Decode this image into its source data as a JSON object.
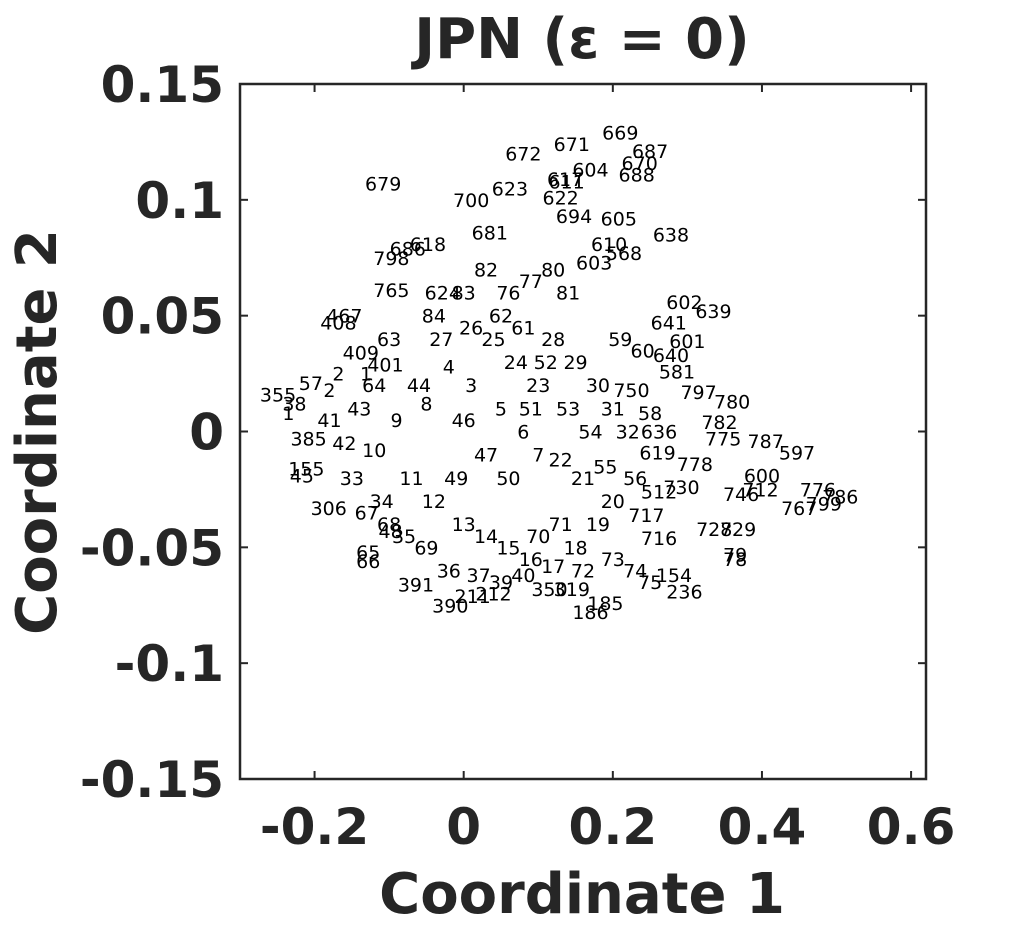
{
  "chart_data": {
    "type": "scatter",
    "title": "JPN (ε = 0)",
    "xlabel": "Coordinate 1",
    "ylabel": "Coordinate 2",
    "xlim": [
      -0.3,
      0.62
    ],
    "ylim": [
      -0.15,
      0.15
    ],
    "x_ticks": [
      -0.2,
      0,
      0.2,
      0.4,
      0.6
    ],
    "x_tick_labels": [
      "-0.2",
      "0",
      "0.2",
      "0.4",
      "0.6"
    ],
    "y_ticks": [
      -0.15,
      -0.1,
      -0.05,
      0,
      0.05,
      0.1,
      0.15
    ],
    "y_tick_labels": [
      "-0.15",
      "-0.1",
      "-0.05",
      "0",
      "0.05",
      "0.1",
      "0.15"
    ],
    "grid": false,
    "marker": "text-label",
    "color": "#000000",
    "points": [
      {
        "label": "669",
        "x": 0.21,
        "y": 0.129
      },
      {
        "label": "672",
        "x": 0.08,
        "y": 0.12
      },
      {
        "label": "671",
        "x": 0.145,
        "y": 0.124
      },
      {
        "label": "687",
        "x": 0.25,
        "y": 0.121
      },
      {
        "label": "604",
        "x": 0.17,
        "y": 0.113
      },
      {
        "label": "670",
        "x": 0.236,
        "y": 0.116
      },
      {
        "label": "688",
        "x": 0.232,
        "y": 0.111
      },
      {
        "label": "617",
        "x": 0.136,
        "y": 0.109
      },
      {
        "label": "611",
        "x": 0.138,
        "y": 0.108
      },
      {
        "label": "679",
        "x": -0.108,
        "y": 0.107
      },
      {
        "label": "623",
        "x": 0.062,
        "y": 0.105
      },
      {
        "label": "700",
        "x": 0.01,
        "y": 0.1
      },
      {
        "label": "622",
        "x": 0.13,
        "y": 0.101
      },
      {
        "label": "605",
        "x": 0.208,
        "y": 0.092
      },
      {
        "label": "694",
        "x": 0.148,
        "y": 0.093
      },
      {
        "label": "638",
        "x": 0.278,
        "y": 0.085
      },
      {
        "label": "681",
        "x": 0.035,
        "y": 0.086
      },
      {
        "label": "610",
        "x": 0.195,
        "y": 0.081
      },
      {
        "label": "618",
        "x": -0.048,
        "y": 0.081
      },
      {
        "label": "686",
        "x": -0.075,
        "y": 0.079
      },
      {
        "label": "568",
        "x": 0.215,
        "y": 0.077
      },
      {
        "label": "798",
        "x": -0.097,
        "y": 0.075
      },
      {
        "label": "603",
        "x": 0.175,
        "y": 0.073
      },
      {
        "label": "765",
        "x": -0.097,
        "y": 0.061
      },
      {
        "label": "624",
        "x": -0.028,
        "y": 0.06
      },
      {
        "label": "602",
        "x": 0.296,
        "y": 0.056
      },
      {
        "label": "639",
        "x": 0.335,
        "y": 0.052
      },
      {
        "label": "467",
        "x": -0.16,
        "y": 0.05
      },
      {
        "label": "408",
        "x": -0.168,
        "y": 0.047
      },
      {
        "label": "641",
        "x": 0.275,
        "y": 0.047
      },
      {
        "label": "601",
        "x": 0.3,
        "y": 0.039
      },
      {
        "label": "409",
        "x": -0.138,
        "y": 0.034
      },
      {
        "label": "640",
        "x": 0.278,
        "y": 0.033
      },
      {
        "label": "581",
        "x": 0.286,
        "y": 0.026
      },
      {
        "label": "797",
        "x": 0.315,
        "y": 0.017
      },
      {
        "label": "780",
        "x": 0.36,
        "y": 0.013
      },
      {
        "label": "750",
        "x": 0.225,
        "y": 0.018
      },
      {
        "label": "782",
        "x": 0.343,
        "y": 0.004
      },
      {
        "label": "775",
        "x": 0.348,
        "y": -0.003
      },
      {
        "label": "787",
        "x": 0.405,
        "y": -0.004
      },
      {
        "label": "597",
        "x": 0.447,
        "y": -0.009
      },
      {
        "label": "636",
        "x": 0.262,
        "y": 0.0
      },
      {
        "label": "619",
        "x": 0.26,
        "y": -0.009
      },
      {
        "label": "778",
        "x": 0.31,
        "y": -0.014
      },
      {
        "label": "600",
        "x": 0.4,
        "y": -0.019
      },
      {
        "label": "776",
        "x": 0.475,
        "y": -0.025
      },
      {
        "label": "786",
        "x": 0.505,
        "y": -0.028
      },
      {
        "label": "799",
        "x": 0.483,
        "y": -0.031
      },
      {
        "label": "767",
        "x": 0.45,
        "y": -0.033
      },
      {
        "label": "712",
        "x": 0.398,
        "y": -0.025
      },
      {
        "label": "746",
        "x": 0.372,
        "y": -0.027
      },
      {
        "label": "730",
        "x": 0.292,
        "y": -0.024
      },
      {
        "label": "512",
        "x": 0.262,
        "y": -0.026
      },
      {
        "label": "717",
        "x": 0.245,
        "y": -0.036
      },
      {
        "label": "728",
        "x": 0.336,
        "y": -0.042
      },
      {
        "label": "729",
        "x": 0.368,
        "y": -0.042
      },
      {
        "label": "716",
        "x": 0.262,
        "y": -0.046
      },
      {
        "label": "79",
        "x": 0.364,
        "y": -0.053
      },
      {
        "label": "78",
        "x": 0.364,
        "y": -0.055
      },
      {
        "label": "154",
        "x": 0.282,
        "y": -0.062
      },
      {
        "label": "236",
        "x": 0.296,
        "y": -0.069
      },
      {
        "label": "185",
        "x": 0.19,
        "y": -0.074
      },
      {
        "label": "186",
        "x": 0.17,
        "y": -0.078
      },
      {
        "label": "390",
        "x": -0.018,
        "y": -0.075
      },
      {
        "label": "391",
        "x": -0.064,
        "y": -0.066
      },
      {
        "label": "211",
        "x": 0.012,
        "y": -0.071
      },
      {
        "label": "212",
        "x": 0.04,
        "y": -0.07
      },
      {
        "label": "350",
        "x": 0.115,
        "y": -0.068
      },
      {
        "label": "319",
        "x": 0.145,
        "y": -0.068
      },
      {
        "label": "65",
        "x": -0.128,
        "y": -0.052
      },
      {
        "label": "66",
        "x": -0.128,
        "y": -0.056
      },
      {
        "label": "48",
        "x": -0.098,
        "y": -0.043
      },
      {
        "label": "306",
        "x": -0.181,
        "y": -0.033
      },
      {
        "label": "45",
        "x": -0.217,
        "y": -0.019
      },
      {
        "label": "155",
        "x": -0.211,
        "y": -0.016
      },
      {
        "label": "355",
        "x": -0.249,
        "y": 0.016
      },
      {
        "label": "385",
        "x": -0.208,
        "y": -0.003
      },
      {
        "label": "401",
        "x": -0.105,
        "y": 0.029
      },
      {
        "label": "1",
        "x": -0.131,
        "y": 0.025
      },
      {
        "label": "2",
        "x": -0.168,
        "y": 0.025
      },
      {
        "label": "38",
        "x": -0.227,
        "y": 0.012
      },
      {
        "label": "1",
        "x": -0.235,
        "y": 0.008
      },
      {
        "label": "2",
        "x": -0.18,
        "y": 0.018
      },
      {
        "label": "57",
        "x": -0.205,
        "y": 0.021
      },
      {
        "label": "4",
        "x": -0.02,
        "y": 0.028
      },
      {
        "label": "3",
        "x": 0.01,
        "y": 0.02
      },
      {
        "label": "5",
        "x": 0.05,
        "y": 0.01
      },
      {
        "label": "6",
        "x": 0.08,
        "y": 0.0
      },
      {
        "label": "7",
        "x": 0.1,
        "y": -0.01
      },
      {
        "label": "8",
        "x": -0.05,
        "y": 0.012
      },
      {
        "label": "9",
        "x": -0.09,
        "y": 0.005
      },
      {
        "label": "10",
        "x": -0.12,
        "y": -0.008
      },
      {
        "label": "11",
        "x": -0.07,
        "y": -0.02
      },
      {
        "label": "12",
        "x": -0.04,
        "y": -0.03
      },
      {
        "label": "13",
        "x": 0.0,
        "y": -0.04
      },
      {
        "label": "14",
        "x": 0.03,
        "y": -0.045
      },
      {
        "label": "15",
        "x": 0.06,
        "y": -0.05
      },
      {
        "label": "16",
        "x": 0.09,
        "y": -0.055
      },
      {
        "label": "17",
        "x": 0.12,
        "y": -0.058
      },
      {
        "label": "18",
        "x": 0.15,
        "y": -0.05
      },
      {
        "label": "19",
        "x": 0.18,
        "y": -0.04
      },
      {
        "label": "20",
        "x": 0.2,
        "y": -0.03
      },
      {
        "label": "21",
        "x": 0.16,
        "y": -0.02
      },
      {
        "label": "22",
        "x": 0.13,
        "y": -0.012
      },
      {
        "label": "23",
        "x": 0.1,
        "y": 0.02
      },
      {
        "label": "24",
        "x": 0.07,
        "y": 0.03
      },
      {
        "label": "25",
        "x": 0.04,
        "y": 0.04
      },
      {
        "label": "26",
        "x": 0.01,
        "y": 0.045
      },
      {
        "label": "27",
        "x": -0.03,
        "y": 0.04
      },
      {
        "label": "28",
        "x": 0.12,
        "y": 0.04
      },
      {
        "label": "29",
        "x": 0.15,
        "y": 0.03
      },
      {
        "label": "30",
        "x": 0.18,
        "y": 0.02
      },
      {
        "label": "31",
        "x": 0.2,
        "y": 0.01
      },
      {
        "label": "32",
        "x": 0.22,
        "y": 0.0
      },
      {
        "label": "33",
        "x": -0.15,
        "y": -0.02
      },
      {
        "label": "34",
        "x": -0.11,
        "y": -0.03
      },
      {
        "label": "35",
        "x": -0.08,
        "y": -0.045
      },
      {
        "label": "36",
        "x": -0.02,
        "y": -0.06
      },
      {
        "label": "37",
        "x": 0.02,
        "y": -0.062
      },
      {
        "label": "39",
        "x": 0.05,
        "y": -0.065
      },
      {
        "label": "40",
        "x": 0.08,
        "y": -0.062
      },
      {
        "label": "41",
        "x": -0.18,
        "y": 0.005
      },
      {
        "label": "42",
        "x": -0.16,
        "y": -0.005
      },
      {
        "label": "43",
        "x": -0.14,
        "y": 0.01
      },
      {
        "label": "44",
        "x": -0.06,
        "y": 0.02
      },
      {
        "label": "46",
        "x": 0.0,
        "y": 0.005
      },
      {
        "label": "47",
        "x": 0.03,
        "y": -0.01
      },
      {
        "label": "49",
        "x": -0.01,
        "y": -0.02
      },
      {
        "label": "50",
        "x": 0.06,
        "y": -0.02
      },
      {
        "label": "51",
        "x": 0.09,
        "y": 0.01
      },
      {
        "label": "52",
        "x": 0.11,
        "y": 0.03
      },
      {
        "label": "53",
        "x": 0.14,
        "y": 0.01
      },
      {
        "label": "54",
        "x": 0.17,
        "y": 0.0
      },
      {
        "label": "55",
        "x": 0.19,
        "y": -0.015
      },
      {
        "label": "56",
        "x": 0.23,
        "y": -0.02
      },
      {
        "label": "58",
        "x": 0.25,
        "y": 0.008
      },
      {
        "label": "59",
        "x": 0.21,
        "y": 0.04
      },
      {
        "label": "60",
        "x": 0.24,
        "y": 0.035
      },
      {
        "label": "61",
        "x": 0.08,
        "y": 0.045
      },
      {
        "label": "62",
        "x": 0.05,
        "y": 0.05
      },
      {
        "label": "63",
        "x": -0.1,
        "y": 0.04
      },
      {
        "label": "64",
        "x": -0.12,
        "y": 0.02
      },
      {
        "label": "67",
        "x": -0.13,
        "y": -0.035
      },
      {
        "label": "68",
        "x": -0.1,
        "y": -0.04
      },
      {
        "label": "69",
        "x": -0.05,
        "y": -0.05
      },
      {
        "label": "70",
        "x": 0.1,
        "y": -0.045
      },
      {
        "label": "71",
        "x": 0.13,
        "y": -0.04
      },
      {
        "label": "72",
        "x": 0.16,
        "y": -0.06
      },
      {
        "label": "73",
        "x": 0.2,
        "y": -0.055
      },
      {
        "label": "74",
        "x": 0.23,
        "y": -0.06
      },
      {
        "label": "75",
        "x": 0.25,
        "y": -0.065
      },
      {
        "label": "76",
        "x": 0.06,
        "y": 0.06
      },
      {
        "label": "77",
        "x": 0.09,
        "y": 0.065
      },
      {
        "label": "80",
        "x": 0.12,
        "y": 0.07
      },
      {
        "label": "81",
        "x": 0.14,
        "y": 0.06
      },
      {
        "label": "82",
        "x": 0.03,
        "y": 0.07
      },
      {
        "label": "83",
        "x": 0.0,
        "y": 0.06
      },
      {
        "label": "84",
        "x": -0.04,
        "y": 0.05
      }
    ]
  }
}
